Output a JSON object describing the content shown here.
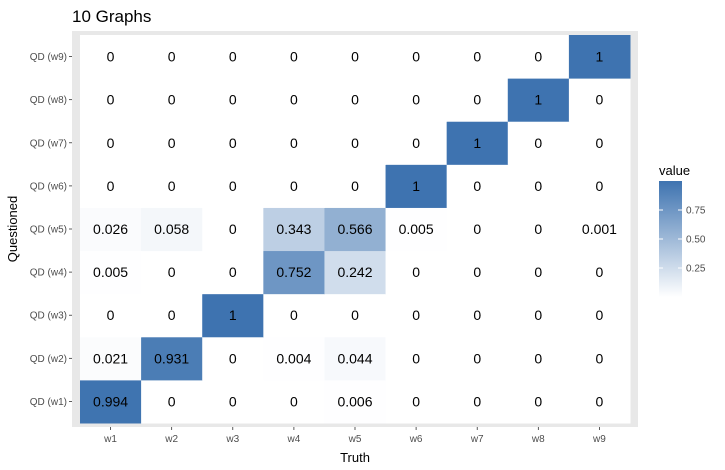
{
  "chart_data": {
    "type": "heatmap",
    "title": "10 Graphs",
    "xlabel": "Truth",
    "ylabel": "Questioned",
    "x_categories": [
      "w1",
      "w2",
      "w3",
      "w4",
      "w5",
      "w6",
      "w7",
      "w8",
      "w9"
    ],
    "y_categories": [
      "QD (w1)",
      "QD (w2)",
      "QD (w3)",
      "QD (w4)",
      "QD (w5)",
      "QD (w6)",
      "QD (w7)",
      "QD (w8)",
      "QD (w9)"
    ],
    "values": [
      [
        0.994,
        0,
        0,
        0,
        0.006,
        0,
        0,
        0,
        0
      ],
      [
        0.021,
        0.931,
        0,
        0.004,
        0.044,
        0,
        0,
        0,
        0
      ],
      [
        0,
        0,
        1,
        0,
        0,
        0,
        0,
        0,
        0
      ],
      [
        0.005,
        0,
        0,
        0.752,
        0.242,
        0,
        0,
        0,
        0
      ],
      [
        0.026,
        0.058,
        0,
        0.343,
        0.566,
        0.005,
        0,
        0,
        0.001
      ],
      [
        0,
        0,
        0,
        0,
        0,
        1,
        0,
        0,
        0
      ],
      [
        0,
        0,
        0,
        0,
        0,
        0,
        1,
        0,
        0
      ],
      [
        0,
        0,
        0,
        0,
        0,
        0,
        0,
        1,
        0
      ],
      [
        0,
        0,
        0,
        0,
        0,
        0,
        0,
        0,
        1
      ]
    ],
    "labels": [
      [
        "0.994",
        "0",
        "0",
        "0",
        "0.006",
        "0",
        "0",
        "0",
        "0"
      ],
      [
        "0.021",
        "0.931",
        "0",
        "0.004",
        "0.044",
        "0",
        "0",
        "0",
        "0"
      ],
      [
        "0",
        "0",
        "1",
        "0",
        "0",
        "0",
        "0",
        "0",
        "0"
      ],
      [
        "0.005",
        "0",
        "0",
        "0.752",
        "0.242",
        "0",
        "0",
        "0",
        "0"
      ],
      [
        "0.026",
        "0.058",
        "0",
        "0.343",
        "0.566",
        "0.005",
        "0",
        "0",
        "0.001"
      ],
      [
        "0",
        "0",
        "0",
        "0",
        "0",
        "1",
        "0",
        "0",
        "0"
      ],
      [
        "0",
        "0",
        "0",
        "0",
        "0",
        "0",
        "1",
        "0",
        "0"
      ],
      [
        "0",
        "0",
        "0",
        "0",
        "0",
        "0",
        "0",
        "1",
        "0"
      ],
      [
        "0",
        "0",
        "0",
        "0",
        "0",
        "0",
        "0",
        "0",
        "1"
      ]
    ],
    "color_range": [
      0,
      1
    ],
    "color_low": "#ffffff",
    "color_high": "#3e73b0",
    "panel_background": "#e8e8e8",
    "legend": {
      "title": "value",
      "placement": "right",
      "ticks": [
        "0.25",
        "0.50",
        "0.75"
      ],
      "tick_values": [
        0.25,
        0.5,
        0.75
      ]
    }
  }
}
